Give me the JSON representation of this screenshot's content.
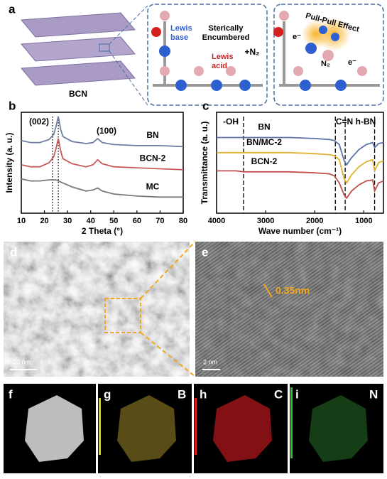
{
  "chart_data": [
    {
      "type": "line",
      "x_label": "2 Theta (°)",
      "y_label": "Intensity (a. u.)",
      "x": [
        10,
        14,
        18,
        22,
        24,
        25,
        26,
        27,
        28,
        32,
        38,
        41,
        43,
        45,
        50,
        60,
        70,
        80
      ],
      "series": [
        {
          "name": "BN",
          "color": "#6d7fa3",
          "values": [
            7.2,
            7.0,
            7.0,
            7.3,
            7.8,
            8.6,
            9.6,
            8.3,
            7.6,
            7.1,
            6.9,
            7.0,
            7.4,
            7.0,
            6.8,
            6.7,
            6.7,
            6.6
          ]
        },
        {
          "name": "BCN-2",
          "color": "#c9585a",
          "values": [
            4.8,
            4.6,
            4.6,
            5.0,
            5.6,
            6.4,
            7.4,
            6.2,
            5.4,
            4.9,
            4.6,
            4.8,
            5.3,
            4.9,
            4.6,
            4.5,
            4.4,
            4.3
          ]
        },
        {
          "name": "MC",
          "color": "#7a7a7a",
          "values": [
            3.4,
            3.2,
            3.2,
            3.3,
            3.3,
            3.3,
            3.2,
            3.1,
            3.0,
            2.6,
            2.2,
            2.3,
            2.5,
            2.2,
            1.9,
            1.7,
            1.6,
            1.6
          ]
        }
      ],
      "xlim": [
        10,
        80
      ],
      "xticks": [
        10,
        20,
        30,
        40,
        50,
        60,
        70,
        80
      ],
      "ylim": [
        0,
        10
      ],
      "vlines": [
        26,
        23.5
      ],
      "vline_style": "dotted",
      "annotations": [
        "(002)",
        "(100)"
      ]
    },
    {
      "type": "line",
      "x_label": "Wave number (cm⁻¹)",
      "y_label": "Transmittance (a. u.)",
      "x": [
        4000,
        3600,
        3450,
        3300,
        3000,
        2500,
        2000,
        1700,
        1600,
        1500,
        1400,
        1350,
        1250,
        1100,
        950,
        820,
        780,
        700,
        600
      ],
      "series": [
        {
          "name": "BN",
          "color": "#5b73a8",
          "values": [
            7.5,
            7.5,
            7.5,
            7.5,
            7.5,
            7.5,
            7.4,
            7.3,
            7.2,
            6.8,
            5.2,
            4.8,
            5.5,
            6.3,
            6.8,
            7.0,
            6.5,
            6.9,
            7.0
          ]
        },
        {
          "name": "BN/MC-2",
          "color": "#e0b32e",
          "values": [
            6.0,
            6.0,
            6.0,
            6.0,
            6.0,
            6.0,
            5.9,
            5.8,
            5.7,
            5.3,
            3.4,
            3.0,
            3.8,
            4.6,
            5.1,
            5.3,
            4.2,
            5.0,
            5.2
          ]
        },
        {
          "name": "BCN-2",
          "color": "#c0504d",
          "values": [
            4.2,
            4.2,
            4.1,
            4.1,
            4.1,
            4.1,
            4.0,
            3.9,
            3.7,
            3.0,
            1.8,
            1.5,
            2.2,
            2.8,
            3.2,
            3.3,
            2.2,
            3.0,
            3.2
          ]
        }
      ],
      "xlim": [
        4000,
        600
      ],
      "xticks": [
        4000,
        3000,
        2000,
        1000
      ],
      "ylim": [
        0,
        10
      ],
      "vlines": [
        3450,
        1580,
        1380,
        780
      ],
      "vline_style": "dashed",
      "annotations": [
        "-OH",
        "C=N",
        "h-BN"
      ]
    }
  ],
  "panels": {
    "a": {
      "label": "a",
      "sheet_label": "BCN",
      "lewis_base": [
        "Lewis",
        "base"
      ],
      "encumbered": [
        "Sterically",
        "Encumbered"
      ],
      "lewis_acid": [
        "Lewis",
        "acid"
      ],
      "plus_n2": "+N₂",
      "effect": "Pull-Pull Effect",
      "electron": "e⁻",
      "n2": "N₂"
    },
    "b": {
      "label": "b"
    },
    "c": {
      "label": "c"
    },
    "d": {
      "label": "d",
      "scale": "20 nm"
    },
    "e": {
      "label": "e",
      "scale": "2 nm",
      "spacing": "0.35nm"
    },
    "f": {
      "label": "f"
    },
    "g": {
      "label": "g",
      "element": "B"
    },
    "h": {
      "label": "h",
      "element": "C"
    },
    "i": {
      "label": "i",
      "element": "N"
    }
  }
}
